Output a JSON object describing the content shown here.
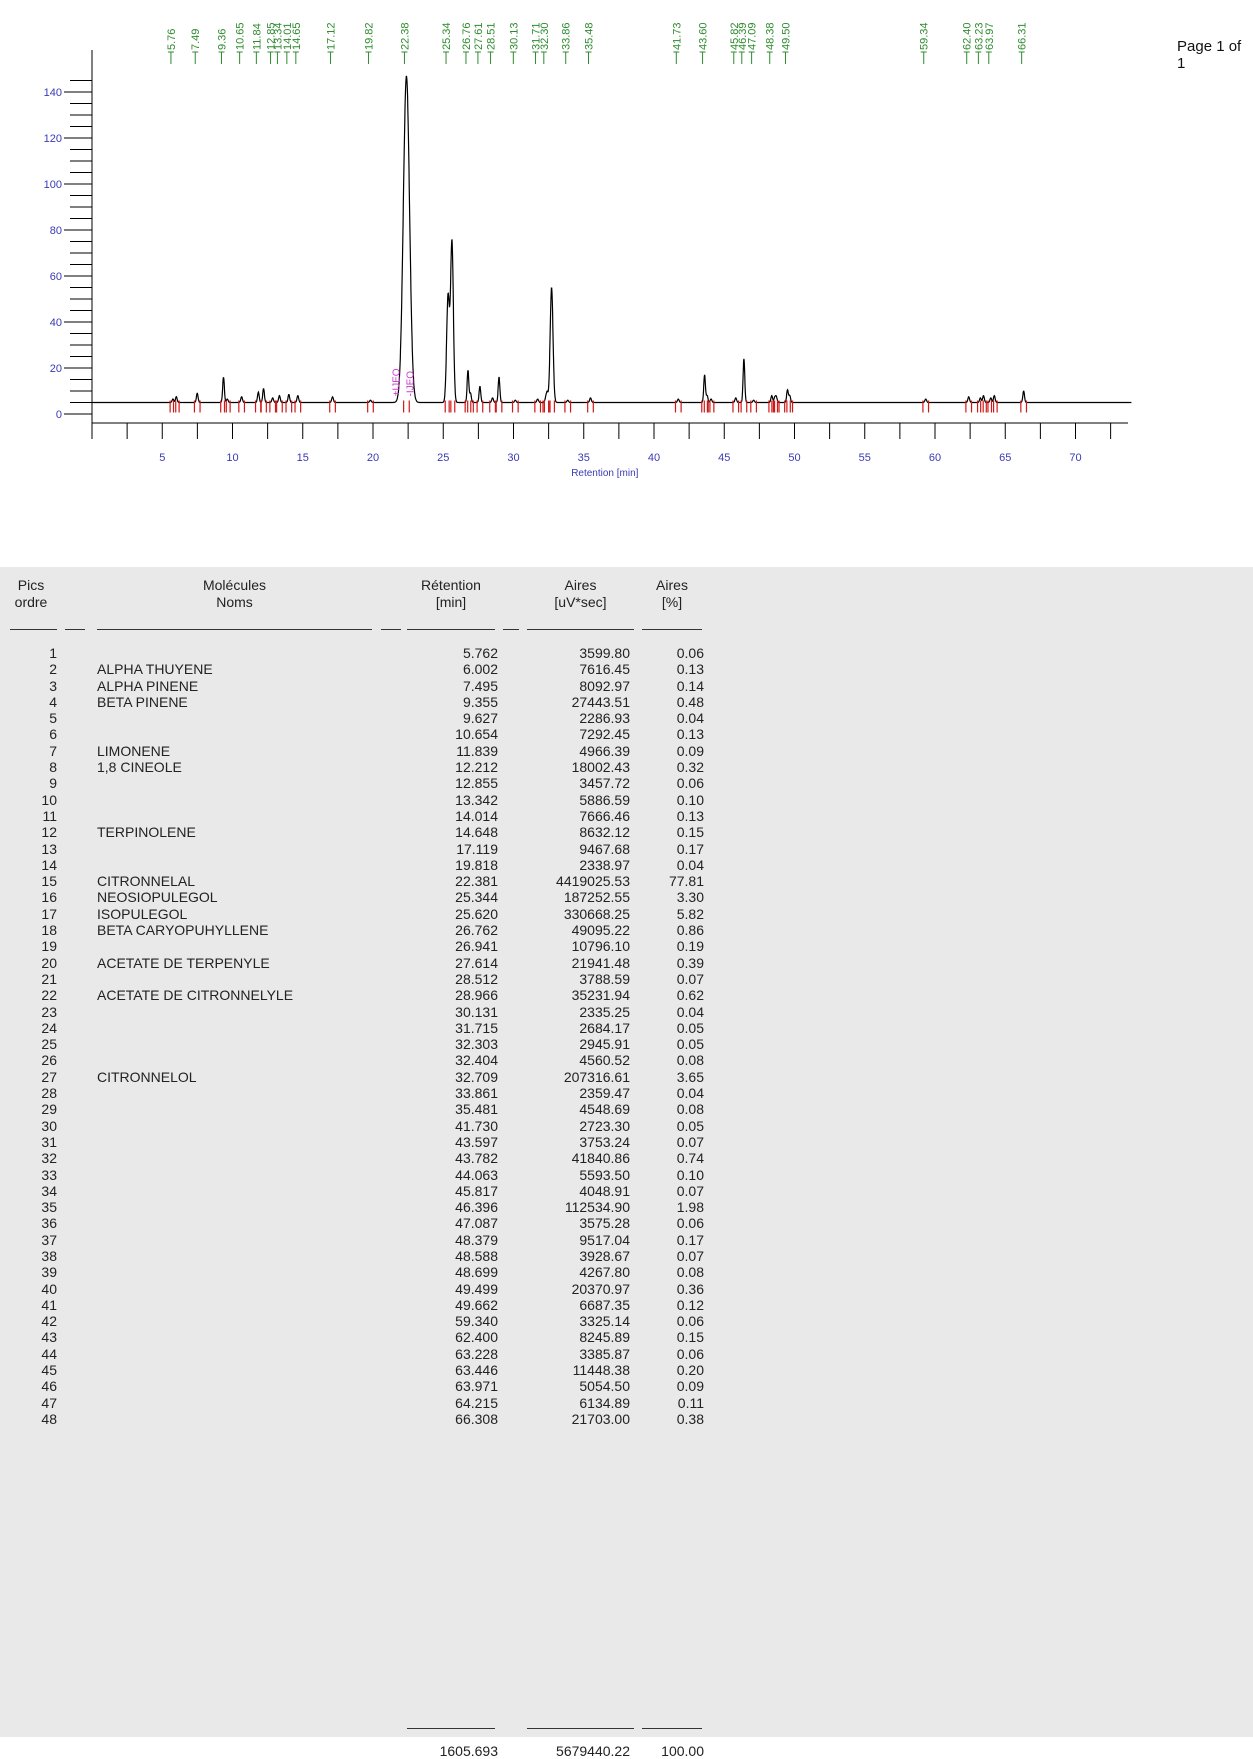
{
  "page": {
    "label": "Page 1 of 1"
  },
  "chart_data": {
    "type": "line",
    "xlabel": "Retention [min]",
    "ylabel": "",
    "xlim": [
      0,
      74
    ],
    "ylim": [
      0,
      150
    ],
    "x_ticks": [
      5,
      10,
      15,
      20,
      25,
      30,
      35,
      40,
      45,
      50,
      55,
      60,
      65,
      70
    ],
    "y_ticks": [
      0,
      20,
      40,
      60,
      80,
      100,
      120,
      140
    ],
    "baseline": 5,
    "series": [
      {
        "x": [
          5.76,
          6.0,
          7.49,
          9.36,
          9.63,
          10.65,
          11.84,
          12.21,
          12.86,
          13.34,
          14.01,
          14.65,
          17.12,
          19.82,
          22.38,
          25.34,
          25.62,
          26.76,
          26.94,
          27.61,
          28.51,
          28.97,
          30.13,
          31.72,
          32.3,
          32.4,
          32.71,
          33.86,
          35.48,
          41.73,
          43.6,
          43.78,
          44.06,
          45.82,
          46.4,
          47.09,
          48.38,
          48.59,
          48.7,
          49.5,
          49.66,
          59.34,
          62.4,
          63.23,
          63.45,
          63.97,
          64.22,
          66.31
        ],
        "y": [
          6.5,
          7.5,
          9,
          16,
          6.5,
          7.5,
          9.5,
          11,
          7,
          8,
          8.5,
          8,
          7.5,
          6,
          147,
          51,
          75,
          19,
          9,
          12,
          7,
          16,
          6,
          6.5,
          7,
          9,
          55,
          6,
          7,
          6.5,
          17,
          8,
          6.5,
          7,
          24,
          6,
          8,
          7,
          7.5,
          10.5,
          8,
          6.5,
          7.5,
          7,
          8,
          7,
          8,
          10
        ]
      }
    ],
    "top_labels": [
      "5.76",
      "7.49",
      "9.36",
      "10.65",
      "11.84",
      "12.85",
      "13.34",
      "14.01",
      "14.65",
      "17.12",
      "19.82",
      "22.38",
      "25.34",
      "26.76",
      "27.61",
      "28.51",
      "30.13",
      "31.71",
      "32.30",
      "33.86",
      "35.48",
      "41.73",
      "43.60",
      "45.82",
      "46.39",
      "47.09",
      "48.38",
      "49.50",
      "59.34",
      "62.40",
      "63.23",
      "63.97",
      "66.31"
    ],
    "event_labels": [
      "+IJEO",
      "-IJEO"
    ]
  },
  "table": {
    "headers": {
      "order": "Pics\nordre",
      "name": "Molécules\nNoms",
      "retention": "Rétention\n[min]",
      "area": "Aires\n[uV*sec]",
      "pct": "Aires\n[%]"
    },
    "rows": [
      {
        "n": "1",
        "name": "",
        "ret": "5.762",
        "area": "3599.80",
        "pct": "0.06"
      },
      {
        "n": "2",
        "name": "ALPHA THUYENE",
        "ret": "6.002",
        "area": "7616.45",
        "pct": "0.13"
      },
      {
        "n": "3",
        "name": "ALPHA PINENE",
        "ret": "7.495",
        "area": "8092.97",
        "pct": "0.14"
      },
      {
        "n": "4",
        "name": "BETA PINENE",
        "ret": "9.355",
        "area": "27443.51",
        "pct": "0.48"
      },
      {
        "n": "5",
        "name": "",
        "ret": "9.627",
        "area": "2286.93",
        "pct": "0.04"
      },
      {
        "n": "6",
        "name": "",
        "ret": "10.654",
        "area": "7292.45",
        "pct": "0.13"
      },
      {
        "n": "7",
        "name": "LIMONENE",
        "ret": "11.839",
        "area": "4966.39",
        "pct": "0.09"
      },
      {
        "n": "8",
        "name": "1,8 CINEOLE",
        "ret": "12.212",
        "area": "18002.43",
        "pct": "0.32"
      },
      {
        "n": "9",
        "name": "",
        "ret": "12.855",
        "area": "3457.72",
        "pct": "0.06"
      },
      {
        "n": "10",
        "name": "",
        "ret": "13.342",
        "area": "5886.59",
        "pct": "0.10"
      },
      {
        "n": "11",
        "name": "",
        "ret": "14.014",
        "area": "7666.46",
        "pct": "0.13"
      },
      {
        "n": "12",
        "name": "TERPINOLENE",
        "ret": "14.648",
        "area": "8632.12",
        "pct": "0.15"
      },
      {
        "n": "13",
        "name": "",
        "ret": "17.119",
        "area": "9467.68",
        "pct": "0.17"
      },
      {
        "n": "14",
        "name": "",
        "ret": "19.818",
        "area": "2338.97",
        "pct": "0.04"
      },
      {
        "n": "15",
        "name": "CITRONNELAL",
        "ret": "22.381",
        "area": "4419025.53",
        "pct": "77.81"
      },
      {
        "n": "16",
        "name": "NEOSIOPULEGOL",
        "ret": "25.344",
        "area": "187252.55",
        "pct": "3.30"
      },
      {
        "n": "17",
        "name": "ISOPULEGOL",
        "ret": "25.620",
        "area": "330668.25",
        "pct": "5.82"
      },
      {
        "n": "18",
        "name": "BETA CARYOPUHYLLENE",
        "ret": "26.762",
        "area": "49095.22",
        "pct": "0.86"
      },
      {
        "n": "19",
        "name": "",
        "ret": "26.941",
        "area": "10796.10",
        "pct": "0.19"
      },
      {
        "n": "20",
        "name": "ACETATE DE TERPENYLE",
        "ret": "27.614",
        "area": "21941.48",
        "pct": "0.39"
      },
      {
        "n": "21",
        "name": "",
        "ret": "28.512",
        "area": "3788.59",
        "pct": "0.07"
      },
      {
        "n": "22",
        "name": "ACETATE DE CITRONNELYLE",
        "ret": "28.966",
        "area": "35231.94",
        "pct": "0.62"
      },
      {
        "n": "23",
        "name": "",
        "ret": "30.131",
        "area": "2335.25",
        "pct": "0.04"
      },
      {
        "n": "24",
        "name": "",
        "ret": "31.715",
        "area": "2684.17",
        "pct": "0.05"
      },
      {
        "n": "25",
        "name": "",
        "ret": "32.303",
        "area": "2945.91",
        "pct": "0.05"
      },
      {
        "n": "26",
        "name": "",
        "ret": "32.404",
        "area": "4560.52",
        "pct": "0.08"
      },
      {
        "n": "27",
        "name": "CITRONNELOL",
        "ret": "32.709",
        "area": "207316.61",
        "pct": "3.65"
      },
      {
        "n": "28",
        "name": "",
        "ret": "33.861",
        "area": "2359.47",
        "pct": "0.04"
      },
      {
        "n": "29",
        "name": "",
        "ret": "35.481",
        "area": "4548.69",
        "pct": "0.08"
      },
      {
        "n": "30",
        "name": "",
        "ret": "41.730",
        "area": "2723.30",
        "pct": "0.05"
      },
      {
        "n": "31",
        "name": "",
        "ret": "43.597",
        "area": "3753.24",
        "pct": "0.07"
      },
      {
        "n": "32",
        "name": "",
        "ret": "43.782",
        "area": "41840.86",
        "pct": "0.74"
      },
      {
        "n": "33",
        "name": "",
        "ret": "44.063",
        "area": "5593.50",
        "pct": "0.10"
      },
      {
        "n": "34",
        "name": "",
        "ret": "45.817",
        "area": "4048.91",
        "pct": "0.07"
      },
      {
        "n": "35",
        "name": "",
        "ret": "46.396",
        "area": "112534.90",
        "pct": "1.98"
      },
      {
        "n": "36",
        "name": "",
        "ret": "47.087",
        "area": "3575.28",
        "pct": "0.06"
      },
      {
        "n": "37",
        "name": "",
        "ret": "48.379",
        "area": "9517.04",
        "pct": "0.17"
      },
      {
        "n": "38",
        "name": "",
        "ret": "48.588",
        "area": "3928.67",
        "pct": "0.07"
      },
      {
        "n": "39",
        "name": "",
        "ret": "48.699",
        "area": "4267.80",
        "pct": "0.08"
      },
      {
        "n": "40",
        "name": "",
        "ret": "49.499",
        "area": "20370.97",
        "pct": "0.36"
      },
      {
        "n": "41",
        "name": "",
        "ret": "49.662",
        "area": "6687.35",
        "pct": "0.12"
      },
      {
        "n": "42",
        "name": "",
        "ret": "59.340",
        "area": "3325.14",
        "pct": "0.06"
      },
      {
        "n": "43",
        "name": "",
        "ret": "62.400",
        "area": "8245.89",
        "pct": "0.15"
      },
      {
        "n": "44",
        "name": "",
        "ret": "63.228",
        "area": "3385.87",
        "pct": "0.06"
      },
      {
        "n": "45",
        "name": "",
        "ret": "63.446",
        "area": "11448.38",
        "pct": "0.20"
      },
      {
        "n": "46",
        "name": "",
        "ret": "63.971",
        "area": "5054.50",
        "pct": "0.09"
      },
      {
        "n": "47",
        "name": "",
        "ret": "64.215",
        "area": "6134.89",
        "pct": "0.11"
      },
      {
        "n": "48",
        "name": "",
        "ret": "66.308",
        "area": "21703.00",
        "pct": "0.38"
      }
    ],
    "totals": {
      "ret": "1605.693",
      "area": "5679440.22",
      "pct": "100.00"
    }
  },
  "colors": {
    "trace": "#000000",
    "axis_labels": "#3a3ab5",
    "top_labels": "#2e8b2e",
    "markers": "#d01818",
    "events": "#cc33cc",
    "table_bg": "#e9e9e9"
  }
}
